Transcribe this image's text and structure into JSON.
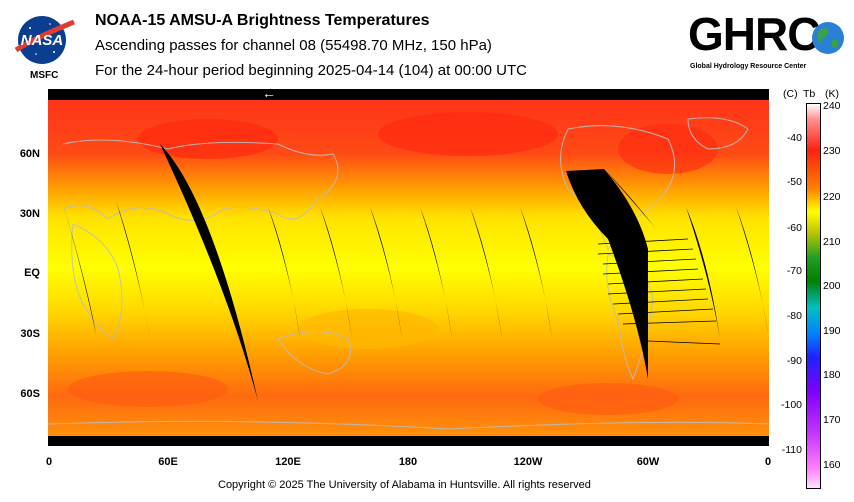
{
  "header": {
    "title": "NOAA-15 AMSU-A Brightness Temperatures",
    "subtitle": "Ascending passes for channel 08 (55498.70 MHz, 150 hPa)",
    "period": "For the 24-hour period beginning 2025-04-14 (104) at 00:00 UTC"
  },
  "logos": {
    "nasa_text": "NASA",
    "msfc_text": "MSFC",
    "ghrc_text": "GHRC",
    "ghrc_sub": "Global Hydrology Resource Center"
  },
  "map": {
    "lat_labels": [
      "60N",
      "30N",
      "EQ",
      "30S",
      "60S"
    ],
    "lon_labels": [
      "0",
      "60E",
      "120E",
      "180",
      "120W",
      "60W",
      "0"
    ],
    "arrow": "←",
    "background_colors": {
      "warm": "#ff2a10",
      "mid": "#ffb000",
      "cool": "#ffff00",
      "nodata": "#000000",
      "coast": "#b8b8b8"
    }
  },
  "colorbar": {
    "header_c": "(C)",
    "header_tb": "Tb",
    "header_k": "(K)",
    "celsius_ticks": [
      "-40",
      "-50",
      "-60",
      "-70",
      "-80",
      "-90",
      "-100",
      "-110"
    ],
    "kelvin_ticks": [
      "240",
      "230",
      "220",
      "210",
      "200",
      "190",
      "180",
      "170",
      "160"
    ],
    "range_k": [
      157,
      240
    ]
  },
  "footer": {
    "copyright": "Copyright © 2025 The University of Alabama in Huntsville.  All rights reserved"
  }
}
